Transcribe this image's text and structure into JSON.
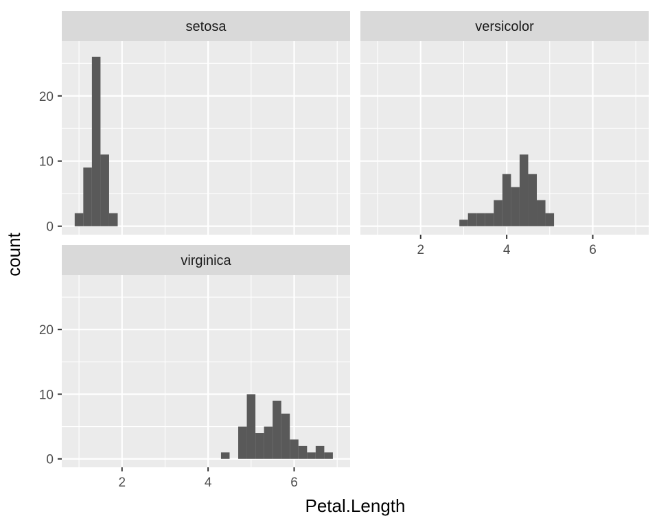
{
  "chart_data": {
    "type": "bar",
    "subtype": "faceted-histogram",
    "xlabel": "Petal.Length",
    "ylabel": "count",
    "xlim": [
      0.6,
      7.3
    ],
    "ylim": [
      -1.3,
      28.4
    ],
    "x_ticks": [
      2,
      4,
      6
    ],
    "y_ticks": [
      0,
      10,
      20
    ],
    "bin_width": 0.2,
    "colors": {
      "bar": "#595959",
      "panel_bg": "#ebebeb",
      "strip_bg": "#d9d9d9",
      "grid": "#ffffff"
    },
    "panels": [
      {
        "name": "setosa",
        "bins": [
          {
            "x0": 0.9,
            "x1": 1.1,
            "count": 2
          },
          {
            "x0": 1.1,
            "x1": 1.3,
            "count": 9
          },
          {
            "x0": 1.3,
            "x1": 1.5,
            "count": 26
          },
          {
            "x0": 1.5,
            "x1": 1.7,
            "count": 11
          },
          {
            "x0": 1.7,
            "x1": 1.9,
            "count": 2
          }
        ]
      },
      {
        "name": "versicolor",
        "bins": [
          {
            "x0": 2.9,
            "x1": 3.1,
            "count": 1
          },
          {
            "x0": 3.1,
            "x1": 3.3,
            "count": 2
          },
          {
            "x0": 3.3,
            "x1": 3.5,
            "count": 2
          },
          {
            "x0": 3.5,
            "x1": 3.7,
            "count": 2
          },
          {
            "x0": 3.7,
            "x1": 3.9,
            "count": 4
          },
          {
            "x0": 3.9,
            "x1": 4.1,
            "count": 8
          },
          {
            "x0": 4.1,
            "x1": 4.3,
            "count": 6
          },
          {
            "x0": 4.3,
            "x1": 4.5,
            "count": 11
          },
          {
            "x0": 4.5,
            "x1": 4.7,
            "count": 8
          },
          {
            "x0": 4.7,
            "x1": 4.9,
            "count": 4
          },
          {
            "x0": 4.9,
            "x1": 5.1,
            "count": 2
          }
        ]
      },
      {
        "name": "virginica",
        "bins": [
          {
            "x0": 4.3,
            "x1": 4.5,
            "count": 1
          },
          {
            "x0": 4.7,
            "x1": 4.9,
            "count": 5
          },
          {
            "x0": 4.9,
            "x1": 5.1,
            "count": 10
          },
          {
            "x0": 5.1,
            "x1": 5.3,
            "count": 4
          },
          {
            "x0": 5.3,
            "x1": 5.5,
            "count": 5
          },
          {
            "x0": 5.5,
            "x1": 5.7,
            "count": 9
          },
          {
            "x0": 5.7,
            "x1": 5.9,
            "count": 7
          },
          {
            "x0": 5.9,
            "x1": 6.1,
            "count": 3
          },
          {
            "x0": 6.1,
            "x1": 6.3,
            "count": 2
          },
          {
            "x0": 6.3,
            "x1": 6.5,
            "count": 1
          },
          {
            "x0": 6.5,
            "x1": 6.7,
            "count": 2
          },
          {
            "x0": 6.7,
            "x1": 6.9,
            "count": 1
          }
        ]
      }
    ]
  }
}
